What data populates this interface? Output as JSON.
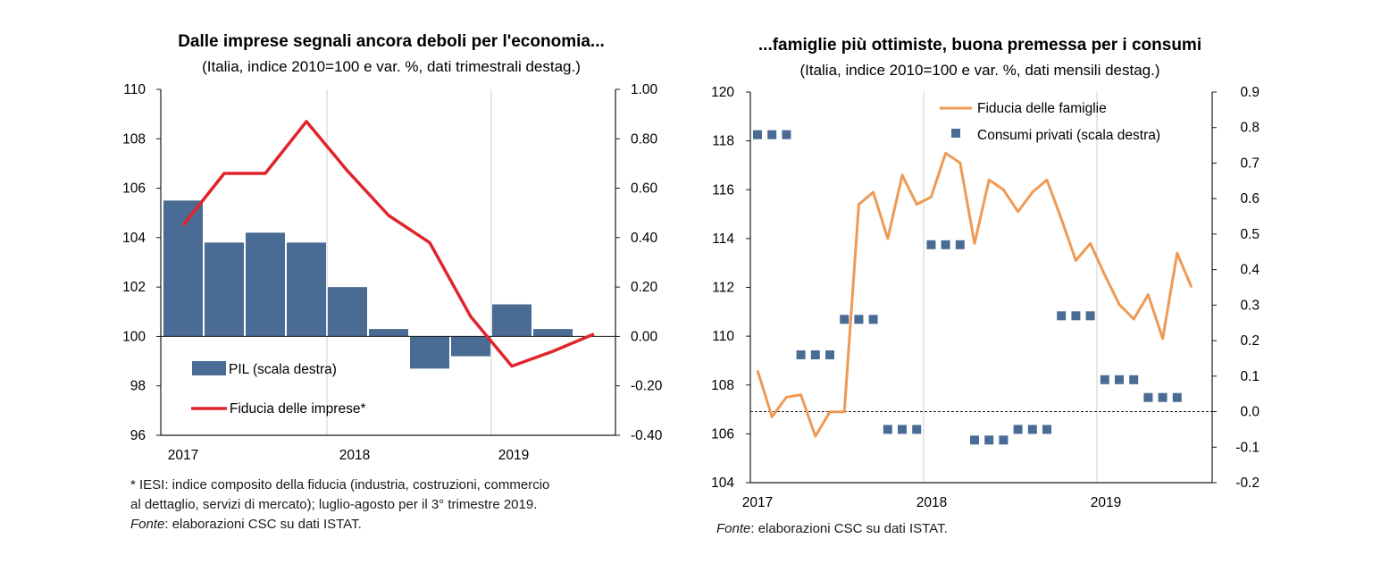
{
  "chart_data": [
    {
      "type": "bar+line",
      "title": "Dalle imprese segnali ancora deboli per l'economia...",
      "subtitle": "(Italia, indice 2010=100 e var. %, dati trimestrali destag.)",
      "left_axis": {
        "ylim": [
          96,
          110
        ],
        "ticks": [
          "110",
          "108",
          "106",
          "104",
          "102",
          "100",
          "98",
          "96"
        ],
        "tick_values": [
          110,
          108,
          106,
          104,
          102,
          100,
          98,
          96
        ]
      },
      "right_axis": {
        "ylim": [
          -0.4,
          1.0
        ],
        "ticks": [
          "1.00",
          "0.80",
          "0.60",
          "0.40",
          "0.20",
          "0.00",
          "-0.20",
          "-0.40"
        ],
        "tick_values": [
          1.0,
          0.8,
          0.6,
          0.4,
          0.2,
          0.0,
          -0.2,
          -0.4
        ]
      },
      "x_labels": [
        "2017",
        "2018",
        "2019"
      ],
      "quarters": [
        "2017Q1",
        "2017Q2",
        "2017Q3",
        "2017Q4",
        "2018Q1",
        "2018Q2",
        "2018Q3",
        "2018Q4",
        "2019Q1",
        "2019Q2",
        "2019Q3"
      ],
      "series": [
        {
          "name": "PIL (scala destra)",
          "kind": "bar",
          "axis": "right",
          "color": "#4a6b94",
          "values": [
            0.55,
            0.38,
            0.42,
            0.38,
            0.2,
            0.03,
            -0.13,
            -0.08,
            0.13,
            0.03,
            null
          ]
        },
        {
          "name": "Fiducia delle imprese*",
          "kind": "line",
          "axis": "left",
          "color": "#e0242b",
          "values": [
            104.5,
            106.6,
            106.6,
            108.7,
            106.7,
            104.9,
            103.8,
            100.8,
            98.8,
            99.4,
            100.1
          ]
        }
      ]
    },
    {
      "type": "line+scatter",
      "title": "...famiglie più ottimiste, buona premessa per i consumi",
      "subtitle": "(Italia, indice 2010=100 e var. %, dati mensili destag.)",
      "left_axis": {
        "ylim": [
          104,
          120
        ],
        "ticks": [
          "120",
          "118",
          "116",
          "114",
          "112",
          "110",
          "108",
          "106",
          "104"
        ],
        "tick_values": [
          120,
          118,
          116,
          114,
          112,
          110,
          108,
          106,
          104
        ]
      },
      "right_axis": {
        "ylim": [
          -0.2,
          0.9
        ],
        "ticks": [
          "0.9",
          "0.8",
          "0.7",
          "0.6",
          "0.5",
          "0.4",
          "0.3",
          "0.2",
          "0.1",
          "0.0",
          "-0.1",
          "-0.2"
        ],
        "tick_values": [
          0.9,
          0.8,
          0.7,
          0.6,
          0.5,
          0.4,
          0.3,
          0.2,
          0.1,
          0.0,
          -0.1,
          -0.2
        ]
      },
      "x_labels": [
        "2017",
        "2018",
        "2019"
      ],
      "series": [
        {
          "name": "Fiducia delle famiglie",
          "kind": "line",
          "axis": "left",
          "color": "#ee9a55",
          "values": [
            108.6,
            106.7,
            107.5,
            107.6,
            105.9,
            106.9,
            106.9,
            115.4,
            115.9,
            114.0,
            116.6,
            115.4,
            115.7,
            117.5,
            117.1,
            113.8,
            116.4,
            116.0,
            115.1,
            115.9,
            116.4,
            114.8,
            113.1,
            113.8,
            112.5,
            111.3,
            110.7,
            111.7,
            109.9,
            113.4,
            112.0
          ]
        },
        {
          "name": "Consumi privati (scala destra)",
          "kind": "square-markers",
          "axis": "right",
          "color": "#4a6b94",
          "values": [
            0.78,
            0.78,
            0.78,
            0.16,
            0.16,
            0.16,
            0.26,
            0.26,
            0.26,
            -0.05,
            -0.05,
            -0.05,
            0.47,
            0.47,
            0.47,
            -0.08,
            -0.08,
            -0.08,
            -0.05,
            -0.05,
            -0.05,
            0.27,
            0.27,
            0.27,
            0.09,
            0.09,
            0.09,
            0.04,
            0.04,
            0.04
          ]
        }
      ]
    }
  ],
  "notes": {
    "left_footnote_line1": "* IESI: indice composito della fiducia (industria, costruzioni,  commercio",
    "left_footnote_line2": "al dettaglio,  servizi di mercato); luglio-agosto  per il 3° trimestre 2019.",
    "fonte_label": "Fonte",
    "left_fonte_text": ": elaborazioni  CSC su dati ISTAT.",
    "right_fonte_text": ": elaborazioni  CSC su dati ISTAT."
  }
}
